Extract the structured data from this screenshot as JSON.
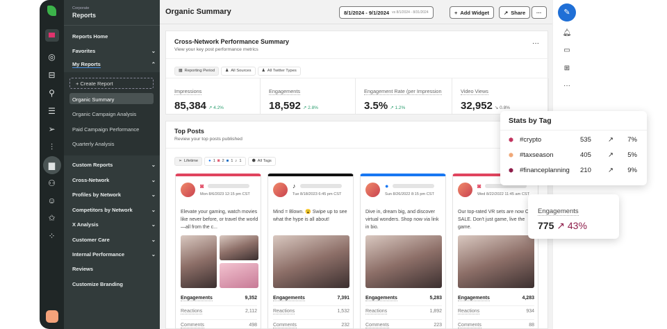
{
  "rail": {
    "icons": [
      "sprout-logo-icon",
      "folder-icon",
      "dashboard-icon",
      "inbox-icon",
      "pin-icon",
      "list-icon",
      "send-icon",
      "listening-icon",
      "reports-icon",
      "people-icon",
      "bot-icon",
      "star-icon",
      "nodes-icon",
      "avatar-icon"
    ]
  },
  "nav": {
    "org": "Corporate",
    "title": "Reports",
    "items": [
      {
        "label": "Reports Home"
      },
      {
        "label": "Favorites",
        "chev": "⌄"
      },
      {
        "label": "My Reports",
        "chev": "⌃"
      }
    ],
    "create": "+ Create Report",
    "my_reports": [
      "Organic Summary",
      "Organic Campaign Analysis",
      "Paid Campaign Performance",
      "Quarterly Analysis"
    ],
    "sections": [
      "Custom Reports",
      "Cross-Network",
      "Profiles by Network",
      "Competitors by Network",
      "X Analysis",
      "Customer Care",
      "Internal Performance"
    ],
    "links": [
      "Reviews",
      "Customize Branding"
    ]
  },
  "header": {
    "title": "Organic Summary",
    "date_range": "8/1/2024 - 9/1/2024",
    "compare": "vs 8/1/2024 - 8/31/2024",
    "add_widget": "Add Widget",
    "share": "Share",
    "more": "···"
  },
  "summary": {
    "title": "Cross-Network Performance Summary",
    "subtitle": "View your key post performance metrics",
    "filters": [
      "Reporting Period",
      "All Sources",
      "All Twitter Types"
    ],
    "kpis": [
      {
        "label": "Impressions",
        "value": "85,384",
        "delta": "↗ 4.2%"
      },
      {
        "label": "Engagements",
        "value": "18,592",
        "delta": "↗ 2.8%"
      },
      {
        "label": "Engagement Rate (per Impression",
        "value": "3.5%",
        "delta": "↗ 1.2%"
      },
      {
        "label": "Video Views",
        "value": "32,952",
        "delta": "↘ 0.8%"
      }
    ]
  },
  "top_posts": {
    "title": "Top Posts",
    "subtitle": "Review your top posts published",
    "lifetime": "Lifetime",
    "counts": [
      "1",
      "2",
      "1",
      "1"
    ],
    "all_tags": "All Tags",
    "posts": [
      {
        "network": "instagram",
        "color": "#e0445e",
        "date": "Mon 8/6/2023 12:15 pm CST",
        "text": "Elevate your gaming, watch movies like never before, or travel the world—all from the c...",
        "engagements": "9,352",
        "reactions": "2,112",
        "comments": "498"
      },
      {
        "network": "tiktok",
        "color": "#111111",
        "date": "Tue 8/18/2023 6:45 pm CST",
        "text": "Mind = Blown. 😮 Swipe up to see what the hype is all about!",
        "engagements": "7,391",
        "reactions": "1,532",
        "comments": "232"
      },
      {
        "network": "facebook",
        "color": "#1877f2",
        "date": "Sun 8/26/2022 8:15 pm CST",
        "text": "Dive in, dream big, and discover virtual wonders. Shop now via link in bio.",
        "engagements": "5,283",
        "reactions": "1,892",
        "comments": "223"
      },
      {
        "network": "instagram",
        "color": "#e0445e",
        "date": "Wed 8/22/2022 11:45 am CST",
        "text": "Our top-rated VR sets are now ON SALE. Don't just game, live the game.",
        "engagements": "4,283",
        "reactions": "934",
        "comments": "88"
      }
    ],
    "labels": {
      "engagements": "Engagements",
      "reactions": "Reactions",
      "comments": "Comments"
    }
  },
  "stats_by_tag": {
    "title": "Stats by Tag",
    "rows": [
      {
        "tag": "#crypto",
        "value": "535",
        "pct": "7%",
        "color": "#c2345f"
      },
      {
        "tag": "#taxseason",
        "value": "405",
        "pct": "5%",
        "color": "#f0a878"
      },
      {
        "tag": "#financeplanning",
        "value": "210",
        "pct": "9%",
        "color": "#8e1d4a"
      }
    ]
  },
  "engagement_popover": {
    "label": "Engagements",
    "value": "775",
    "delta": "↗ 43%",
    "accent": "#8e1d4a"
  },
  "right_rail": {
    "icons": [
      "compose-icon",
      "bell-icon",
      "message-icon",
      "add-icon",
      "more-icon"
    ]
  }
}
